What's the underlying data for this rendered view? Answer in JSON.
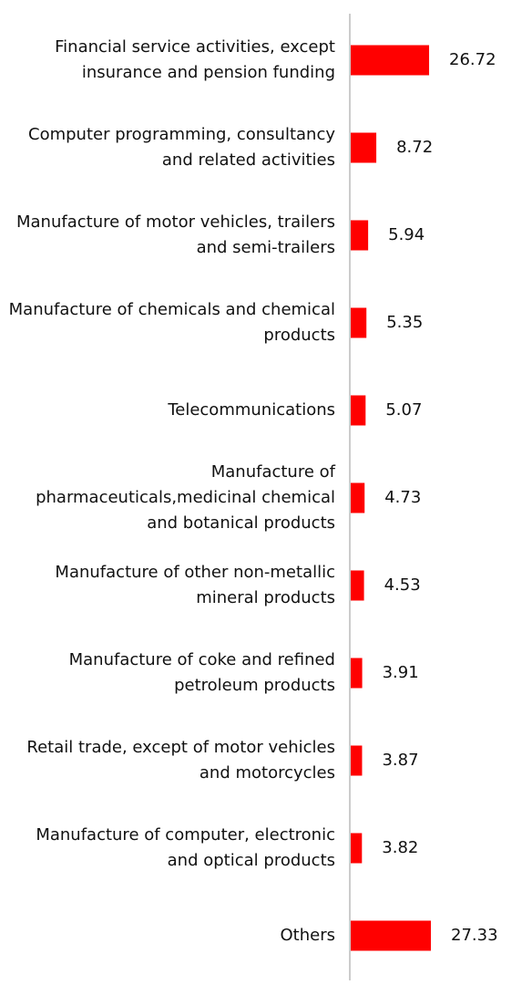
{
  "chart_data": {
    "type": "bar",
    "orientation": "horizontal",
    "color": "#ff0000",
    "categories": [
      "Financial service activities, except insurance and pension funding",
      "Computer programming, consultancy and related activities",
      "Manufacture of motor vehicles, trailers and semi-trailers",
      "Manufacture of chemicals and chemical products",
      "Telecommunications",
      "Manufacture of pharmaceuticals,medicinal chemical and botanical products",
      "Manufacture of other non-metallic mineral products",
      "Manufacture of coke and refined petroleum products",
      "Retail trade, except of motor vehicles and motorcycles",
      "Manufacture of computer, electronic and optical products",
      "Others"
    ],
    "values": [
      26.72,
      8.72,
      5.94,
      5.35,
      5.07,
      4.73,
      4.53,
      3.91,
      3.87,
      3.82,
      27.33
    ]
  }
}
